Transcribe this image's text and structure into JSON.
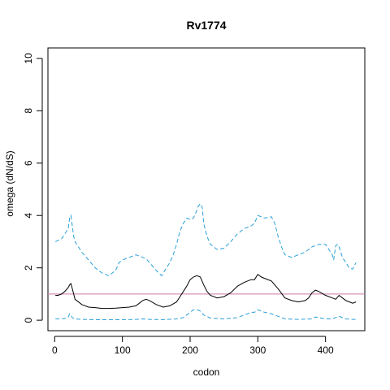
{
  "chart_data": {
    "type": "line",
    "title": "Rv1774",
    "xlabel": "codon",
    "ylabel": "omega (dN/dS)",
    "xlim": [
      -10,
      458
    ],
    "ylim": [
      -0.4,
      10.4
    ],
    "xticks": [
      0,
      100,
      200,
      300,
      400
    ],
    "yticks": [
      0,
      2,
      4,
      6,
      8,
      10
    ],
    "grid": false,
    "legend": "none",
    "reference_line": {
      "y": 1,
      "color": "#cc79a7"
    },
    "series": [
      {
        "style": "upper-ci",
        "color": "#2a9fd6",
        "dash": "dashed",
        "x": [
          1,
          5,
          10,
          15,
          20,
          22,
          24,
          26,
          28,
          30,
          40,
          50,
          60,
          70,
          80,
          90,
          95,
          100,
          110,
          120,
          125,
          130,
          135,
          140,
          150,
          158,
          165,
          170,
          175,
          180,
          185,
          190,
          195,
          200,
          205,
          210,
          212,
          215,
          218,
          220,
          225,
          230,
          240,
          250,
          260,
          270,
          280,
          290,
          295,
          300,
          310,
          320,
          325,
          330,
          335,
          340,
          350,
          360,
          370,
          375,
          380,
          385,
          390,
          400,
          410,
          412,
          415,
          418,
          420,
          425,
          430,
          435,
          440,
          445
        ],
        "y": [
          3.0,
          3.05,
          3.1,
          3.3,
          3.5,
          3.9,
          4.0,
          3.6,
          3.2,
          3.0,
          2.6,
          2.3,
          2.0,
          1.8,
          1.7,
          1.9,
          2.2,
          2.3,
          2.4,
          2.5,
          2.45,
          2.4,
          2.35,
          2.2,
          1.9,
          1.7,
          2.0,
          2.2,
          2.5,
          2.9,
          3.4,
          3.7,
          3.9,
          3.85,
          3.9,
          4.2,
          4.35,
          4.45,
          4.3,
          3.7,
          3.2,
          2.9,
          2.7,
          2.75,
          3.0,
          3.3,
          3.5,
          3.6,
          3.7,
          4.0,
          3.9,
          3.95,
          3.7,
          3.2,
          2.8,
          2.5,
          2.4,
          2.5,
          2.6,
          2.7,
          2.8,
          2.85,
          2.9,
          2.9,
          2.5,
          2.3,
          2.85,
          2.9,
          2.8,
          2.4,
          2.2,
          2.0,
          1.95,
          2.2
        ]
      },
      {
        "style": "estimate",
        "color": "#000000",
        "dash": "solid",
        "x": [
          1,
          5,
          10,
          15,
          20,
          22,
          24,
          26,
          28,
          30,
          40,
          50,
          60,
          70,
          80,
          90,
          100,
          110,
          120,
          125,
          130,
          135,
          140,
          150,
          160,
          170,
          180,
          185,
          190,
          195,
          200,
          205,
          210,
          215,
          220,
          225,
          230,
          240,
          250,
          260,
          270,
          280,
          290,
          295,
          300,
          305,
          310,
          320,
          330,
          340,
          350,
          360,
          370,
          375,
          380,
          385,
          390,
          400,
          410,
          415,
          420,
          425,
          430,
          440,
          445
        ],
        "y": [
          0.95,
          0.95,
          1.0,
          1.1,
          1.25,
          1.35,
          1.4,
          1.2,
          1.0,
          0.8,
          0.6,
          0.5,
          0.48,
          0.45,
          0.45,
          0.46,
          0.48,
          0.5,
          0.55,
          0.65,
          0.75,
          0.8,
          0.75,
          0.6,
          0.5,
          0.55,
          0.7,
          0.9,
          1.1,
          1.3,
          1.55,
          1.65,
          1.7,
          1.65,
          1.35,
          1.1,
          0.95,
          0.85,
          0.9,
          1.05,
          1.3,
          1.45,
          1.55,
          1.55,
          1.75,
          1.65,
          1.6,
          1.5,
          1.2,
          0.85,
          0.75,
          0.7,
          0.75,
          0.85,
          1.05,
          1.15,
          1.1,
          0.95,
          0.85,
          0.8,
          0.95,
          0.85,
          0.75,
          0.65,
          0.7
        ]
      },
      {
        "style": "lower-ci",
        "color": "#2a9fd6",
        "dash": "dashed",
        "x": [
          1,
          10,
          18,
          20,
          22,
          24,
          26,
          30,
          40,
          60,
          80,
          100,
          120,
          130,
          140,
          160,
          180,
          190,
          195,
          200,
          205,
          210,
          215,
          220,
          230,
          250,
          270,
          280,
          290,
          295,
          300,
          305,
          310,
          320,
          330,
          340,
          360,
          380,
          385,
          390,
          400,
          410,
          420,
          425,
          430,
          440,
          445
        ],
        "y": [
          0.05,
          0.05,
          0.08,
          0.12,
          0.25,
          0.2,
          0.1,
          0.05,
          0.03,
          0.02,
          0.02,
          0.02,
          0.03,
          0.05,
          0.03,
          0.02,
          0.05,
          0.1,
          0.2,
          0.3,
          0.4,
          0.4,
          0.35,
          0.2,
          0.08,
          0.05,
          0.1,
          0.2,
          0.3,
          0.3,
          0.4,
          0.35,
          0.3,
          0.25,
          0.15,
          0.05,
          0.03,
          0.05,
          0.12,
          0.1,
          0.05,
          0.05,
          0.15,
          0.1,
          0.05,
          0.03,
          0.03
        ]
      }
    ]
  }
}
